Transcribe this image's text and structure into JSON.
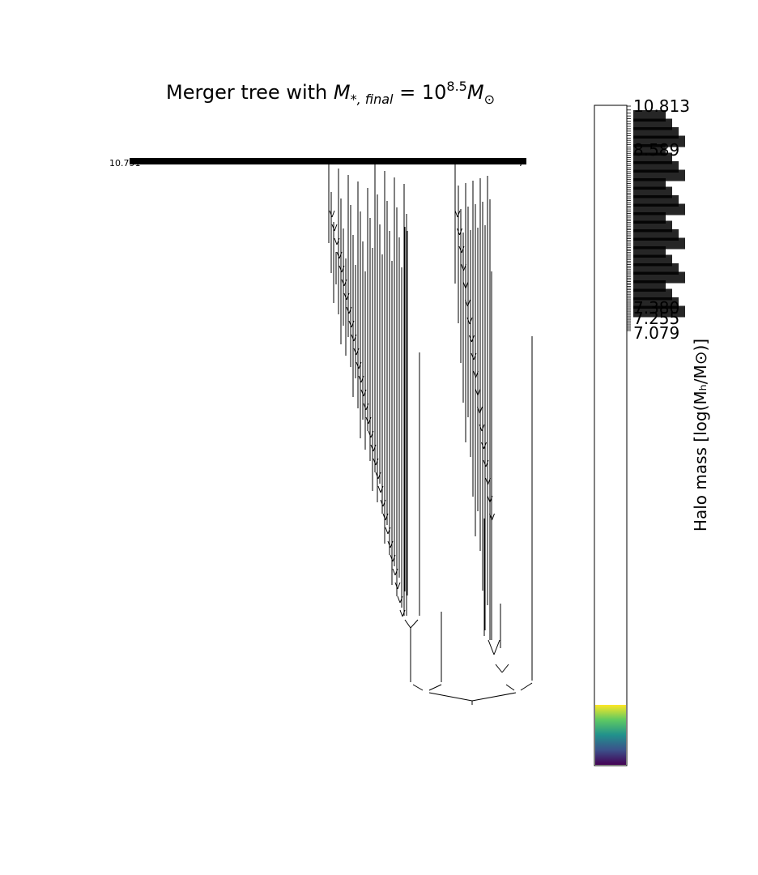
{
  "figure": {
    "title_prefix": "Merger tree with ",
    "title_math": "M",
    "title_sub": "*, final",
    "title_eq": " = 10",
    "title_exp": "8.5",
    "title_unit": "M",
    "title_unit_sub": "⊙"
  },
  "colorbar": {
    "label": "Halo mass [log(Mₕ/M⊙)]",
    "colormap": "viridis",
    "color_stops": [
      "#fde725",
      "#5ec962",
      "#21918c",
      "#3b528b",
      "#440154"
    ],
    "tick_labels_readable": [
      "10.813",
      "8.589",
      "7.380",
      "7.255",
      "7.079"
    ]
  },
  "tree": {
    "root_label_left": "10.791",
    "root_label_right": "7"
  }
}
